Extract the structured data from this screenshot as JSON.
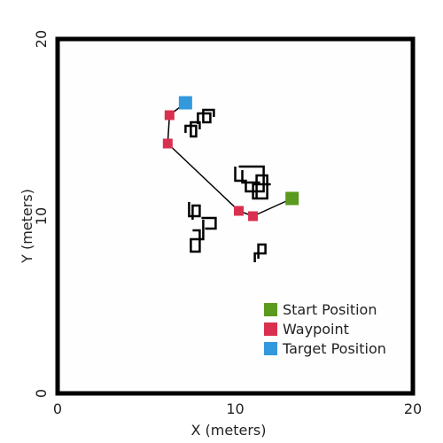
{
  "chart_data": {
    "type": "scatter",
    "xlabel": "X (meters)",
    "ylabel": "Y (meters)",
    "xlim": [
      0,
      20
    ],
    "ylim": [
      0,
      20
    ],
    "x_ticks": [
      0,
      10,
      20
    ],
    "y_ticks": [
      0,
      10,
      20
    ],
    "grid": false,
    "legend_position": "bottom-right",
    "series": [
      {
        "name": "Start Position",
        "color": "#5a9a1e",
        "marker": "square",
        "points": [
          [
            13.2,
            11.0
          ]
        ]
      },
      {
        "name": "Waypoint",
        "color": "#d9304f",
        "marker": "square",
        "points": [
          [
            6.3,
            15.7
          ],
          [
            6.2,
            14.1
          ],
          [
            10.2,
            10.3
          ],
          [
            11.0,
            10.0
          ]
        ]
      },
      {
        "name": "Target Position",
        "color": "#3399dd",
        "marker": "square",
        "points": [
          [
            7.2,
            16.4
          ]
        ]
      }
    ],
    "path": {
      "color": "#000000",
      "points": [
        [
          13.2,
          11.0
        ],
        [
          11.0,
          10.0
        ],
        [
          10.2,
          10.3
        ],
        [
          6.2,
          14.1
        ],
        [
          6.3,
          15.7
        ],
        [
          7.2,
          16.4
        ]
      ]
    },
    "obstacles": {
      "color": "#000000",
      "polylines": [
        [
          [
            7.2,
            14.7
          ],
          [
            7.2,
            15.1
          ],
          [
            7.8,
            15.1
          ],
          [
            7.8,
            14.5
          ],
          [
            7.5,
            14.5
          ],
          [
            7.5,
            15.3
          ],
          [
            8.0,
            15.3
          ],
          [
            8.0,
            14.9
          ]
        ],
        [
          [
            7.9,
            15.2
          ],
          [
            7.9,
            15.8
          ],
          [
            8.6,
            15.8
          ],
          [
            8.6,
            15.3
          ],
          [
            8.2,
            15.3
          ],
          [
            8.2,
            16.0
          ],
          [
            8.8,
            16.0
          ],
          [
            8.8,
            15.6
          ]
        ],
        [
          [
            10.0,
            12.8
          ],
          [
            10.0,
            12.0
          ],
          [
            10.6,
            12.0
          ],
          [
            10.6,
            11.4
          ],
          [
            11.6,
            11.4
          ],
          [
            11.6,
            12.8
          ],
          [
            10.2,
            12.8
          ]
        ],
        [
          [
            11.2,
            11.0
          ],
          [
            11.2,
            12.3
          ],
          [
            11.8,
            12.3
          ],
          [
            11.8,
            11.0
          ],
          [
            11.0,
            11.0
          ],
          [
            11.0,
            11.8
          ],
          [
            12.0,
            11.8
          ]
        ],
        [
          [
            10.4,
            12.6
          ],
          [
            10.4,
            11.9
          ],
          [
            11.4,
            11.9
          ]
        ],
        [
          [
            7.4,
            10.8
          ],
          [
            7.4,
            10.0
          ],
          [
            8.0,
            10.0
          ],
          [
            8.0,
            10.6
          ],
          [
            7.6,
            10.6
          ],
          [
            7.6,
            9.8
          ]
        ],
        [
          [
            8.2,
            9.8
          ],
          [
            8.2,
            8.7
          ],
          [
            7.5,
            8.7
          ],
          [
            7.5,
            8.0
          ],
          [
            8.0,
            8.0
          ],
          [
            8.0,
            9.2
          ],
          [
            7.6,
            9.2
          ]
        ],
        [
          [
            8.1,
            9.9
          ],
          [
            8.9,
            9.9
          ],
          [
            8.9,
            9.3
          ],
          [
            8.3,
            9.3
          ]
        ],
        [
          [
            11.1,
            7.4
          ],
          [
            11.1,
            7.9
          ],
          [
            11.7,
            7.9
          ],
          [
            11.7,
            8.4
          ],
          [
            11.3,
            8.4
          ],
          [
            11.3,
            7.6
          ]
        ]
      ]
    }
  }
}
